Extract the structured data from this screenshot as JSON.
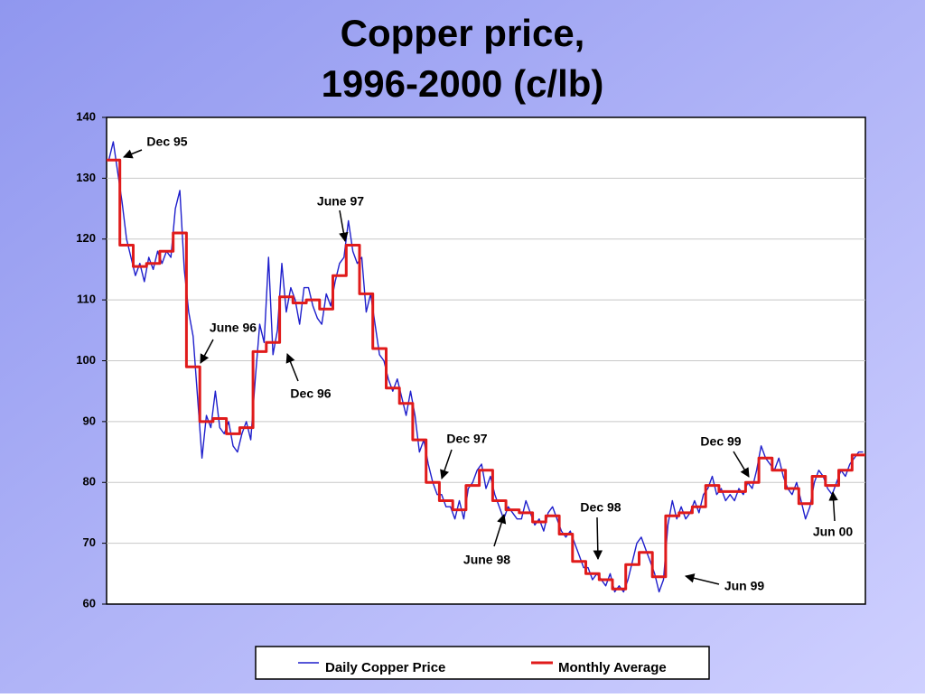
{
  "chart_data": {
    "type": "line",
    "title": "Copper price,",
    "subtitle": "1996-2000 (c/lb)",
    "ylim": [
      60,
      140
    ],
    "yticks": [
      60,
      70,
      80,
      90,
      100,
      110,
      120,
      130,
      140
    ],
    "grid": true,
    "series": [
      {
        "name": "Daily Copper Price",
        "color": "#1f1fcc",
        "values": [
          133,
          136,
          131,
          126,
          120,
          117,
          114,
          116,
          113,
          117,
          115,
          118,
          116,
          118,
          117,
          125,
          128,
          115,
          108,
          104,
          94,
          84,
          91,
          89,
          95,
          89,
          88,
          90,
          86,
          85,
          88,
          90,
          87,
          97,
          106,
          103,
          117,
          101,
          105,
          116,
          108,
          112,
          110,
          106,
          112,
          112,
          109,
          107,
          106,
          111,
          109,
          113,
          116,
          117,
          123,
          118,
          116,
          117,
          108,
          111,
          106,
          101,
          100,
          97,
          95,
          97,
          94,
          91,
          95,
          91,
          85,
          87,
          83,
          80,
          78,
          78,
          76,
          76,
          74,
          77,
          74,
          79,
          80,
          82,
          83,
          79,
          81,
          78,
          76,
          74,
          76,
          75,
          74,
          74,
          77,
          75,
          73,
          74,
          72,
          75,
          76,
          74,
          72,
          71,
          72,
          70,
          68,
          66,
          66,
          64,
          65,
          64,
          63,
          65,
          62,
          63,
          62,
          64,
          67,
          70,
          71,
          69,
          67,
          65,
          62,
          64,
          73,
          77,
          74,
          76,
          74,
          75,
          77,
          75,
          78,
          79,
          81,
          78,
          79,
          77,
          78,
          77,
          79,
          78,
          80,
          79,
          82,
          86,
          84,
          83,
          82,
          84,
          81,
          79,
          78,
          80,
          77,
          74,
          76,
          80,
          82,
          81,
          79,
          78,
          80,
          82,
          81,
          83,
          84,
          85,
          85
        ]
      },
      {
        "name": "Monthly Average",
        "color": "#e01b1b",
        "values": [
          133,
          119,
          115.5,
          116,
          118,
          121,
          99,
          90,
          90.5,
          88,
          89,
          101.5,
          103,
          110.5,
          109.5,
          110,
          108.5,
          114,
          119,
          111,
          102,
          95.5,
          93,
          87,
          80,
          77,
          75.5,
          79.5,
          82,
          77,
          75.5,
          75,
          73.5,
          74.5,
          71.5,
          67,
          65,
          64,
          62.5,
          66.5,
          68.5,
          64.5,
          74.5,
          75,
          76,
          79.5,
          78.5,
          78.5,
          80,
          84,
          82,
          79,
          76.5,
          81,
          79.5,
          82,
          84.5
        ]
      }
    ],
    "annotations": [
      "Dec 95",
      "June 97",
      "June 96",
      "Dec 96",
      "Dec 97",
      "Dec 98",
      "June 98",
      "Dec 99",
      "Jun 00",
      "Jun 99"
    ]
  }
}
